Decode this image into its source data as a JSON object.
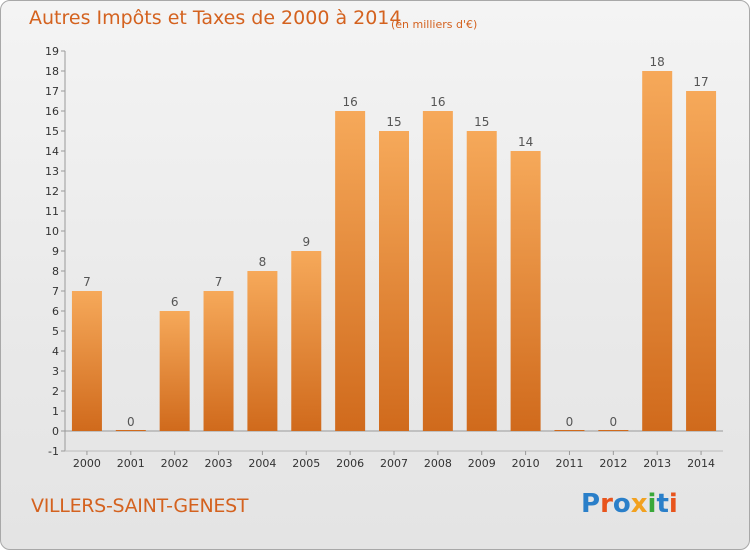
{
  "header": {
    "title": "Autres Impôts et Taxes de 2000 à 2014",
    "unit": "(en milliers d'€)"
  },
  "footer": {
    "commune": "VILLERS-SAINT-GENEST",
    "logo": "Proxiti"
  },
  "colors": {
    "accent": "#d4621f",
    "bar_light": "#f6a95a",
    "bar_dark": "#d06a1c",
    "logo_letters": [
      "#2a7fc9",
      "#e8541c",
      "#2a7fc9",
      "#f2a11f",
      "#3aa83a",
      "#2a7fc9",
      "#e8541c"
    ]
  },
  "chart_data": {
    "type": "bar",
    "categories": [
      "2000",
      "2001",
      "2002",
      "2003",
      "2004",
      "2005",
      "2006",
      "2007",
      "2008",
      "2009",
      "2010",
      "2011",
      "2012",
      "2013",
      "2014"
    ],
    "values": [
      7,
      0,
      6,
      7,
      8,
      9,
      16,
      15,
      16,
      15,
      14,
      0,
      0,
      18,
      17
    ],
    "title": "Autres Impôts et Taxes de 2000 à 2014",
    "ylim": [
      -1,
      19
    ],
    "yticks": [
      -1,
      0,
      1,
      2,
      3,
      4,
      5,
      6,
      7,
      8,
      9,
      10,
      11,
      12,
      13,
      14,
      15,
      16,
      17,
      18,
      19
    ],
    "grid": false,
    "data_labels": true
  }
}
